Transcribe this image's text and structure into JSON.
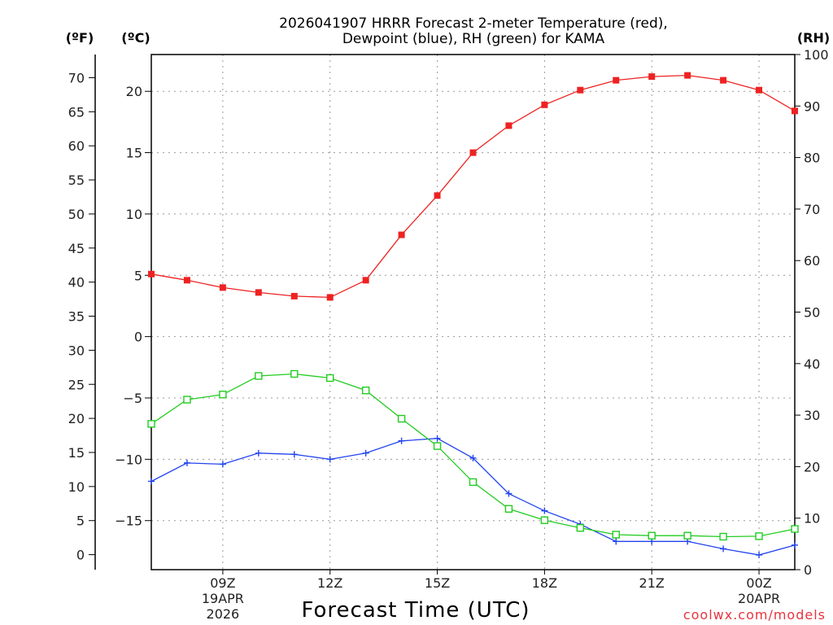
{
  "chart_data": {
    "type": "line",
    "title_line1": "2026041907 HRRR Forecast 2-meter Temperature (red),",
    "title_line2": "Dewpoint (blue), RH (green) for KAMA",
    "units": {
      "f": "(ºF)",
      "c": "(ºC)",
      "rh": "(RH)"
    },
    "xlabel": "Forecast Time (UTC)",
    "credit": "coolwx.com/models",
    "x_hours": [
      7,
      8,
      9,
      10,
      11,
      12,
      13,
      14,
      15,
      16,
      17,
      18,
      19,
      20,
      21,
      22,
      23,
      24,
      25
    ],
    "xlim": [
      7,
      25
    ],
    "x_ticks": [
      {
        "hour": 9,
        "lines": [
          "09Z",
          "19APR",
          "2026"
        ]
      },
      {
        "hour": 12,
        "lines": [
          "12Z"
        ]
      },
      {
        "hour": 15,
        "lines": [
          "15Z"
        ]
      },
      {
        "hour": 18,
        "lines": [
          "18Z"
        ]
      },
      {
        "hour": 21,
        "lines": [
          "21Z"
        ]
      },
      {
        "hour": 24,
        "lines": [
          "00Z",
          "20APR"
        ]
      }
    ],
    "ylim_c": [
      -19,
      23
    ],
    "c_ticks": [
      -15,
      -10,
      -5,
      0,
      5,
      10,
      15,
      20
    ],
    "c_tick_labels": [
      "−15",
      "−10",
      "−5",
      "0",
      "5",
      "10",
      "15",
      "20"
    ],
    "f_ticks": [
      0,
      5,
      10,
      15,
      20,
      25,
      30,
      35,
      40,
      45,
      50,
      55,
      60,
      65,
      70
    ],
    "ylim_rh": [
      0,
      100
    ],
    "rh_ticks": [
      0,
      10,
      20,
      30,
      40,
      50,
      60,
      70,
      80,
      90,
      100
    ],
    "series": [
      {
        "name": "2-meter Temperature",
        "color": "#ee2222",
        "marker": "filled-square",
        "axis": "c",
        "values": [
          5.1,
          4.6,
          4.0,
          3.6,
          3.3,
          3.2,
          4.6,
          8.3,
          11.5,
          15.0,
          17.2,
          18.9,
          20.1,
          20.9,
          21.2,
          21.3,
          20.9,
          20.1,
          18.4
        ]
      },
      {
        "name": "Dewpoint",
        "color": "#2244ee",
        "marker": "plus",
        "axis": "c",
        "values": [
          -11.8,
          -10.3,
          -10.4,
          -9.5,
          -9.6,
          -10.0,
          -9.5,
          -8.5,
          -8.3,
          -9.9,
          -12.8,
          -14.2,
          -15.3,
          -16.7,
          -16.7,
          -16.7,
          -17.3,
          -17.8,
          -17.0
        ]
      },
      {
        "name": "RH",
        "color": "#22cc22",
        "marker": "open-square",
        "axis": "rh",
        "values": [
          28.3,
          33.0,
          34.0,
          37.6,
          38.0,
          37.2,
          34.8,
          29.3,
          24.0,
          17.0,
          11.8,
          9.6,
          8.1,
          6.8,
          6.6,
          6.6,
          6.4,
          6.5,
          7.9
        ]
      }
    ]
  }
}
